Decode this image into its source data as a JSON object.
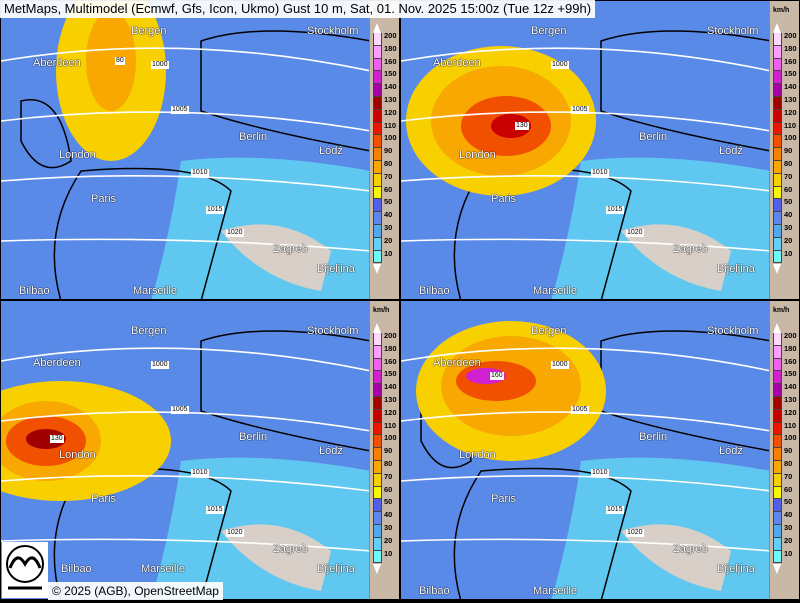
{
  "title": "MetMaps, Multimodel (Ecmwf, Gfs, Icon, Ukmo) Gust 10 m, Sat, 01. Nov. 2025 15:00z (Tue 12z +99h)",
  "copyright": "© 2025 (AGB), OpenStreetMap",
  "logo_text": "METMAPS",
  "legend": {
    "unit": "km/h",
    "levels": [
      {
        "v": "200",
        "c": "#ffd8ff"
      },
      {
        "v": "180",
        "c": "#ff9cff"
      },
      {
        "v": "160",
        "c": "#f060f0"
      },
      {
        "v": "150",
        "c": "#d020d0"
      },
      {
        "v": "140",
        "c": "#a800a8"
      },
      {
        "v": "130",
        "c": "#a00000"
      },
      {
        "v": "120",
        "c": "#c80000"
      },
      {
        "v": "110",
        "c": "#e81800"
      },
      {
        "v": "100",
        "c": "#f05000"
      },
      {
        "v": "90",
        "c": "#f88000"
      },
      {
        "v": "80",
        "c": "#f8a800"
      },
      {
        "v": "70",
        "c": "#f8d000"
      },
      {
        "v": "60",
        "c": "#f8f800"
      },
      {
        "v": "50",
        "c": "#5060e8"
      },
      {
        "v": "40",
        "c": "#5a88f0"
      },
      {
        "v": "30",
        "c": "#50a8f0"
      },
      {
        "v": "20",
        "c": "#60d0f8"
      },
      {
        "v": "10",
        "c": "#70f8f8"
      }
    ]
  },
  "cities": [
    "Aberdeen",
    "London",
    "Paris",
    "Berlin",
    "Łódź",
    "Zagreb",
    "Bijeljina",
    "Bilbao",
    "Marseille",
    "Stockholm",
    "Bergen"
  ],
  "isobars": [
    "1000",
    "1005",
    "1010",
    "1015",
    "1020"
  ],
  "panels": [
    {
      "name": "model-1",
      "storm_peak": "80"
    },
    {
      "name": "model-2",
      "storm_peak": "130"
    },
    {
      "name": "model-3",
      "storm_peak": "130"
    },
    {
      "name": "model-4",
      "storm_peak": "160"
    }
  ]
}
